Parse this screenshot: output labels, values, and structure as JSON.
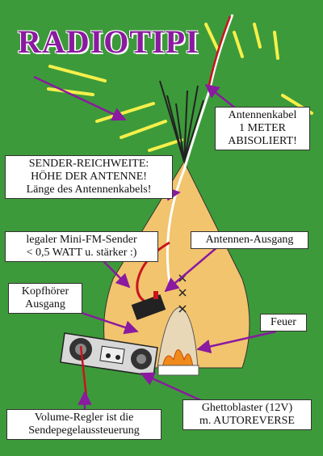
{
  "title": "RADIOTIPI",
  "labels": {
    "antenna_cable": [
      "Antennenkabel",
      "1 METER",
      "ABISOLIERT!"
    ],
    "range": [
      "SENDER-REICHWEITE:",
      "HÖHE DER ANTENNE!",
      "Länge des Antennenkabels!"
    ],
    "transmitter": [
      "legaler Mini-FM-Sender",
      "< 0,5 WATT u. stärker :)"
    ],
    "antenna_output": [
      "Antennen-Ausgang"
    ],
    "headphone": [
      "Kopfhörer",
      "Ausgang"
    ],
    "fire": [
      "Feuer"
    ],
    "volume": [
      "Volume-Regler ist die",
      "Sendepegelaussteuerung"
    ],
    "ghettoblaster": [
      "Ghettoblaster (12V)",
      "m. AUTOREVERSE"
    ]
  },
  "colors": {
    "background": "#3d9a3a",
    "tipi": "#f2c46e",
    "title": "#8a1aa0",
    "arrows": "#8a1aa0",
    "rays": "#f6f04a",
    "fire": "#f08a1a"
  }
}
